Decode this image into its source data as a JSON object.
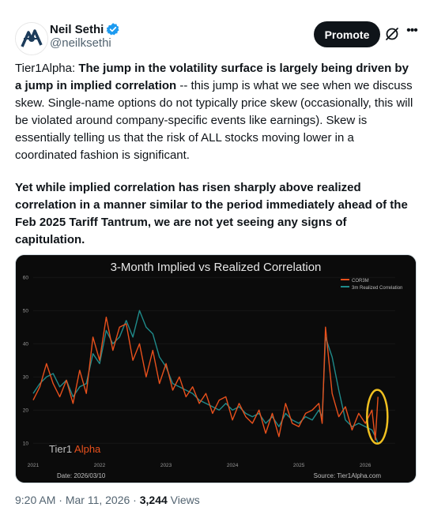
{
  "author": {
    "name": "Neil Sethi",
    "handle": "@neilksethi"
  },
  "actions": {
    "promote_label": "Promote"
  },
  "tweet": {
    "p1_lead": "Tier1Alpha: ",
    "p1_bold": "The jump in the volatility surface is largely being driven by a jump in implied correlation",
    "p1_rest": " -- this jump is what we see when we discuss skew. Single-name options do not typically price skew (occasionally, this will be violated around company-specific events like earnings). Skew is essentially telling us that the risk of ALL stocks moving lower in a coordinated fashion is significant.",
    "p2_bold": "Yet while implied correlation has risen sharply above realized correlation in a manner similar to the period immediately ahead of the Feb 2025 Tariff Tantrum, we are not yet seeing any signs of capitulation."
  },
  "footer": {
    "time": "9:20 AM",
    "sep1": " · ",
    "date": "Mar 11, 2026",
    "sep2": " · ",
    "views_count": "3,244",
    "views_label": " Views"
  },
  "colors": {
    "implied": "#e8501c",
    "realized": "#1f8a8a",
    "highlight": "#f0c020",
    "watermark_alpha": "#e8501c"
  },
  "chart_data": {
    "type": "line",
    "title": "3-Month Implied vs Realized Correlation",
    "x_ticks": [
      "2021",
      "2022",
      "2023",
      "2024",
      "2025",
      "2026"
    ],
    "y_ticks": [
      "10",
      "20",
      "30",
      "40",
      "50",
      "60"
    ],
    "ylim": [
      6,
      61
    ],
    "xlim": [
      2021.0,
      2026.45
    ],
    "legend_position": "top-right",
    "watermark_brand_a": "Tier1",
    "watermark_brand_b": " Alpha",
    "date_label": "Date: 2026/03/10",
    "source_label": "Source: Tier1Alpha.com",
    "series": [
      {
        "name": "COR3M",
        "x": [
          2021.0,
          2021.1,
          2021.2,
          2021.3,
          2021.4,
          2021.5,
          2021.6,
          2021.7,
          2021.8,
          2021.9,
          2022.0,
          2022.1,
          2022.2,
          2022.3,
          2022.4,
          2022.5,
          2022.6,
          2022.7,
          2022.8,
          2022.9,
          2023.0,
          2023.1,
          2023.2,
          2023.3,
          2023.4,
          2023.5,
          2023.6,
          2023.7,
          2023.8,
          2023.9,
          2024.0,
          2024.1,
          2024.2,
          2024.3,
          2024.4,
          2024.5,
          2024.6,
          2024.7,
          2024.8,
          2024.9,
          2025.0,
          2025.1,
          2025.2,
          2025.3,
          2025.35,
          2025.4,
          2025.5,
          2025.6,
          2025.7,
          2025.8,
          2025.9,
          2026.0,
          2026.1,
          2026.15,
          2026.19
        ],
        "values": [
          23,
          27,
          34,
          28,
          24,
          29,
          22,
          32,
          25,
          42,
          35,
          48,
          38,
          45,
          46,
          35,
          40,
          30,
          38,
          28,
          34,
          26,
          30,
          24,
          27,
          22,
          25,
          19,
          23,
          24,
          17,
          22,
          18,
          16,
          20,
          13,
          19,
          12,
          22,
          16,
          15,
          19,
          20,
          22,
          16,
          45,
          25,
          18,
          21,
          14,
          19,
          16,
          20,
          11,
          24
        ]
      },
      {
        "name": "3m Realized Correlation",
        "x": [
          2021.0,
          2021.1,
          2021.2,
          2021.3,
          2021.4,
          2021.5,
          2021.6,
          2021.7,
          2021.8,
          2021.9,
          2022.0,
          2022.1,
          2022.2,
          2022.3,
          2022.4,
          2022.5,
          2022.6,
          2022.7,
          2022.8,
          2022.9,
          2023.0,
          2023.1,
          2023.2,
          2023.3,
          2023.4,
          2023.5,
          2023.6,
          2023.7,
          2023.8,
          2023.9,
          2024.0,
          2024.1,
          2024.2,
          2024.3,
          2024.4,
          2024.5,
          2024.6,
          2024.7,
          2024.8,
          2024.9,
          2025.0,
          2025.1,
          2025.2,
          2025.3,
          2025.35,
          2025.4,
          2025.5,
          2025.6,
          2025.7,
          2025.8,
          2025.9,
          2026.0,
          2026.1,
          2026.15,
          2026.19
        ],
        "values": [
          25,
          28,
          30,
          31,
          27,
          29,
          24,
          27,
          28,
          37,
          34,
          44,
          40,
          42,
          47,
          42,
          50,
          45,
          43,
          36,
          33,
          28,
          27,
          26,
          25,
          23,
          22,
          21,
          20,
          22,
          20,
          21,
          19,
          18,
          19,
          16,
          18,
          15,
          19,
          17,
          16,
          18,
          17,
          20,
          18,
          42,
          36,
          26,
          17,
          15,
          16,
          15,
          14,
          12,
          10
        ]
      }
    ]
  }
}
